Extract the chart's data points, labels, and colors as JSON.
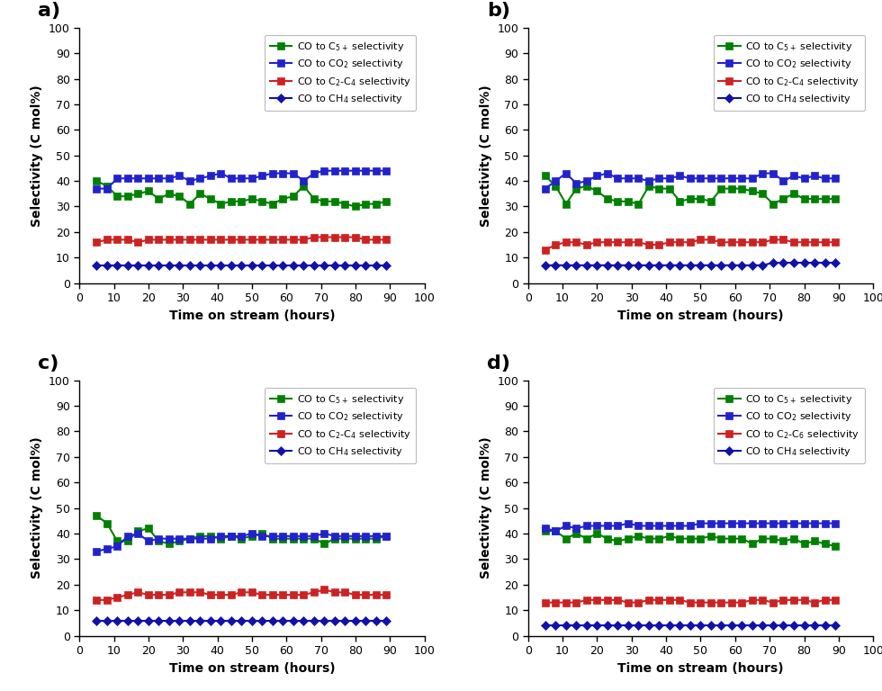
{
  "x": [
    5,
    8,
    11,
    14,
    17,
    20,
    23,
    26,
    29,
    32,
    35,
    38,
    41,
    44,
    47,
    50,
    53,
    56,
    59,
    62,
    65,
    68,
    71,
    74,
    77,
    80,
    83,
    86,
    89
  ],
  "panel_a": {
    "label": "a)",
    "C5plus": [
      40,
      38,
      34,
      34,
      35,
      36,
      33,
      35,
      34,
      31,
      35,
      33,
      31,
      32,
      32,
      33,
      32,
      31,
      33,
      34,
      38,
      33,
      32,
      32,
      31,
      30,
      31,
      31,
      32
    ],
    "CO2": [
      37,
      37,
      41,
      41,
      41,
      41,
      41,
      41,
      42,
      40,
      41,
      42,
      43,
      41,
      41,
      41,
      42,
      43,
      43,
      43,
      40,
      43,
      44,
      44,
      44,
      44,
      44,
      44,
      44
    ],
    "C2C4": [
      16,
      17,
      17,
      17,
      16,
      17,
      17,
      17,
      17,
      17,
      17,
      17,
      17,
      17,
      17,
      17,
      17,
      17,
      17,
      17,
      17,
      18,
      18,
      18,
      18,
      18,
      17,
      17,
      17
    ],
    "CH4": [
      7,
      7,
      7,
      7,
      7,
      7,
      7,
      7,
      7,
      7,
      7,
      7,
      7,
      7,
      7,
      7,
      7,
      7,
      7,
      7,
      7,
      7,
      7,
      7,
      7,
      7,
      7,
      7,
      7
    ],
    "legend_c5": "CO to C$_{5+}$ selectivity",
    "legend_co2": "CO to CO$_2$ selectivity",
    "legend_c2c4": "CO to C$_2$-C$_4$ selectivity",
    "legend_ch4": "CO to CH$_4$ selectivity",
    "legend_has_separator": false
  },
  "panel_b": {
    "label": "b)",
    "C5plus": [
      42,
      38,
      31,
      37,
      38,
      36,
      33,
      32,
      32,
      31,
      38,
      37,
      37,
      32,
      33,
      33,
      32,
      37,
      37,
      37,
      36,
      35,
      31,
      33,
      35,
      33,
      33,
      33,
      33
    ],
    "CO2": [
      37,
      40,
      43,
      39,
      40,
      42,
      43,
      41,
      41,
      41,
      40,
      41,
      41,
      42,
      41,
      41,
      41,
      41,
      41,
      41,
      41,
      43,
      43,
      40,
      42,
      41,
      42,
      41,
      41
    ],
    "C2C4": [
      13,
      15,
      16,
      16,
      15,
      16,
      16,
      16,
      16,
      16,
      15,
      15,
      16,
      16,
      16,
      17,
      17,
      16,
      16,
      16,
      16,
      16,
      17,
      17,
      16,
      16,
      16,
      16,
      16
    ],
    "CH4": [
      7,
      7,
      7,
      7,
      7,
      7,
      7,
      7,
      7,
      7,
      7,
      7,
      7,
      7,
      7,
      7,
      7,
      7,
      7,
      7,
      7,
      7,
      8,
      8,
      8,
      8,
      8,
      8,
      8
    ],
    "legend_c5": "CO to C$_{5+}$ selectivity",
    "legend_co2": "CO to CO$_2$ selectivity",
    "legend_c2c4": "CO to C$_2$-C$_4$ selectivity",
    "legend_ch4": "CO to CH$_4$ selectivity",
    "legend_has_separator": false
  },
  "panel_c": {
    "label": "c)",
    "C5plus": [
      47,
      44,
      37,
      37,
      41,
      42,
      37,
      36,
      37,
      38,
      39,
      39,
      38,
      39,
      38,
      39,
      40,
      38,
      38,
      38,
      38,
      38,
      36,
      38,
      38,
      38,
      38,
      38,
      39
    ],
    "CO2": [
      33,
      34,
      35,
      39,
      40,
      37,
      38,
      38,
      38,
      38,
      38,
      38,
      39,
      39,
      39,
      40,
      39,
      39,
      39,
      39,
      39,
      39,
      40,
      39,
      39,
      39,
      39,
      39,
      39
    ],
    "C2C4": [
      14,
      14,
      15,
      16,
      17,
      16,
      16,
      16,
      17,
      17,
      17,
      16,
      16,
      16,
      17,
      17,
      16,
      16,
      16,
      16,
      16,
      17,
      18,
      17,
      17,
      16,
      16,
      16,
      16
    ],
    "CH4": [
      6,
      6,
      6,
      6,
      6,
      6,
      6,
      6,
      6,
      6,
      6,
      6,
      6,
      6,
      6,
      6,
      6,
      6,
      6,
      6,
      6,
      6,
      6,
      6,
      6,
      6,
      6,
      6,
      6
    ],
    "legend_c5": "CO to C$_{5+}$ selectivity",
    "legend_co2": "CO to CO$_2$ selectivity",
    "legend_c2c4": "CO to C$_2$-C$_4$ selectivity",
    "legend_ch4": "CO to CH$_4$ selectivity",
    "legend_has_separator": false
  },
  "panel_d": {
    "label": "d)",
    "C5plus": [
      41,
      41,
      38,
      40,
      38,
      40,
      38,
      37,
      38,
      39,
      38,
      38,
      39,
      38,
      38,
      38,
      39,
      38,
      38,
      38,
      36,
      38,
      38,
      37,
      38,
      36,
      37,
      36,
      35
    ],
    "CO2": [
      42,
      41,
      43,
      42,
      43,
      43,
      43,
      43,
      44,
      43,
      43,
      43,
      43,
      43,
      43,
      44,
      44,
      44,
      44,
      44,
      44,
      44,
      44,
      44,
      44,
      44,
      44,
      44,
      44
    ],
    "C2C4": [
      13,
      13,
      13,
      13,
      14,
      14,
      14,
      14,
      13,
      13,
      14,
      14,
      14,
      14,
      13,
      13,
      13,
      13,
      13,
      13,
      14,
      14,
      13,
      14,
      14,
      14,
      13,
      14,
      14
    ],
    "CH4": [
      4,
      4,
      4,
      4,
      4,
      4,
      4,
      4,
      4,
      4,
      4,
      4,
      4,
      4,
      4,
      4,
      4,
      4,
      4,
      4,
      4,
      4,
      4,
      4,
      4,
      4,
      4,
      4,
      4
    ],
    "legend_c5": "CO to C$_{5+}$ selectivity",
    "legend_co2": "CO to CO$_2$ selectivity",
    "legend_c2c4": "CO to C$_2$-C$_6$ selectivity",
    "legend_ch4": "CO to CH$_4$ selectivity",
    "legend_has_separator": true
  },
  "colors": {
    "green": "#008000",
    "blue": "#2222CC",
    "red": "#CC2222",
    "dark_blue": "#1111AA"
  },
  "xlabel": "Time on stream (hours)",
  "ylabel": "Selectivity (C mol%)",
  "xlim": [
    0,
    100
  ],
  "ylim": [
    0,
    100
  ],
  "xticks": [
    0,
    10,
    20,
    30,
    40,
    50,
    60,
    70,
    80,
    90,
    100
  ],
  "yticks": [
    0,
    10,
    20,
    30,
    40,
    50,
    60,
    70,
    80,
    90,
    100
  ]
}
